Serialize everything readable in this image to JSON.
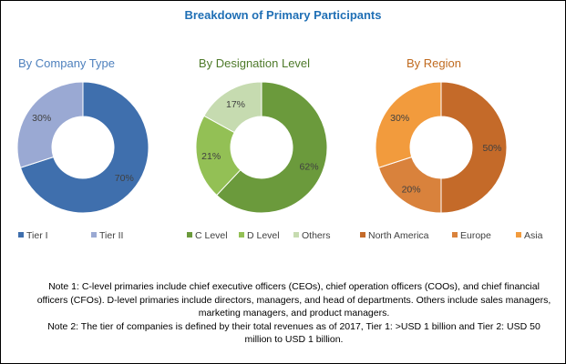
{
  "title": "Breakdown of Primary Participants",
  "chart_data": [
    {
      "type": "pie",
      "subtitle": "By Company Type",
      "subtitle_color": "#4f81bd",
      "categories": [
        "Tier I",
        "Tier II"
      ],
      "values": [
        70,
        30
      ],
      "labels": [
        "70%",
        "30%"
      ],
      "colors": [
        "#3f6fad",
        "#9aa9d3"
      ],
      "legend": "bottom"
    },
    {
      "type": "pie",
      "subtitle": "By Designation Level",
      "subtitle_color": "#4e7a2a",
      "categories": [
        "C Level",
        "D Level",
        "Others"
      ],
      "values": [
        62,
        21,
        17
      ],
      "labels": [
        "62%",
        "21%",
        "17%"
      ],
      "colors": [
        "#6b9a3c",
        "#93c055",
        "#c6dbb0"
      ],
      "legend": "bottom"
    },
    {
      "type": "pie",
      "subtitle": "By Region",
      "subtitle_color": "#c06a1f",
      "categories": [
        "North America",
        "Europe",
        "Asia"
      ],
      "values": [
        50,
        20,
        30
      ],
      "labels": [
        "50%",
        "20%",
        "30%"
      ],
      "colors": [
        "#c46a29",
        "#d9823c",
        "#f29b3d"
      ],
      "legend": "bottom"
    }
  ],
  "notes": [
    "Note 1: C-level primaries include chief executive officers (CEOs), chief operation officers (COOs), and chief financial officers (CFOs). D-level primaries include directors, managers, and head of departments. Others include sales managers, marketing managers, and product managers.",
    "Note 2: The tier of companies is defined by their total revenues as of 2017, Tier 1: >USD 1 billion and Tier 2: USD 50 million to USD 1 billion."
  ]
}
